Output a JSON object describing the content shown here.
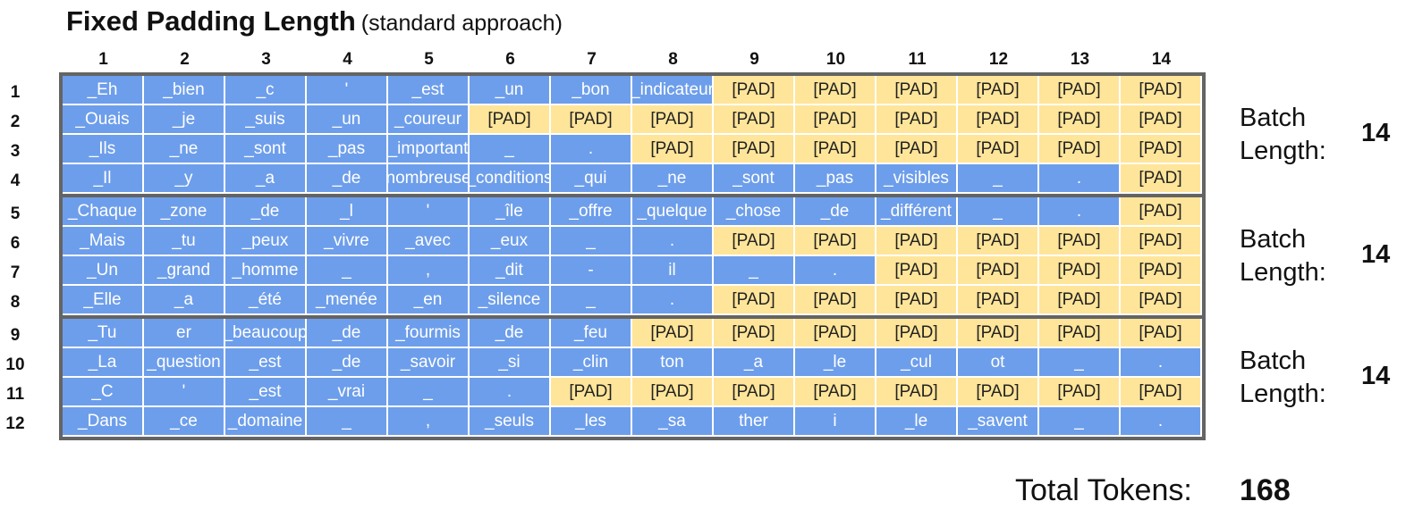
{
  "title": {
    "main": "Fixed Padding Length",
    "sub": "(standard approach)"
  },
  "columns": [
    "1",
    "2",
    "3",
    "4",
    "5",
    "6",
    "7",
    "8",
    "9",
    "10",
    "11",
    "12",
    "13",
    "14"
  ],
  "pad_token": "[PAD]",
  "rows": [
    {
      "label": "1",
      "tokens": [
        "_Eh",
        "_bien",
        "_c",
        "'",
        "_est",
        "_un",
        "_bon",
        "_indicateur"
      ]
    },
    {
      "label": "2",
      "tokens": [
        "_Ouais",
        "_je",
        "_suis",
        "_un",
        "_coureur"
      ]
    },
    {
      "label": "3",
      "tokens": [
        "_Ils",
        "_ne",
        "_sont",
        "_pas",
        "_important",
        "_",
        "."
      ]
    },
    {
      "label": "4",
      "tokens": [
        "_Il",
        "_y",
        "_a",
        "_de",
        "_nombreuses",
        "_conditions",
        "_qui",
        "_ne",
        "_sont",
        "_pas",
        "_visibles",
        "_",
        "."
      ]
    },
    {
      "label": "5",
      "tokens": [
        "_Chaque",
        "_zone",
        "_de",
        "_l",
        "'",
        "_île",
        "_offre",
        "_quelque",
        "_chose",
        "_de",
        "_différent",
        "_",
        "."
      ]
    },
    {
      "label": "6",
      "tokens": [
        "_Mais",
        "_tu",
        "_peux",
        "_vivre",
        "_avec",
        "_eux",
        "_",
        "."
      ]
    },
    {
      "label": "7",
      "tokens": [
        "_Un",
        "_grand",
        "_homme",
        "_",
        ",",
        "_dit",
        "-",
        "il",
        "_",
        "."
      ]
    },
    {
      "label": "8",
      "tokens": [
        "_Elle",
        "_a",
        "_été",
        "_menée",
        "_en",
        "_silence",
        "_",
        "."
      ]
    },
    {
      "label": "9",
      "tokens": [
        "_Tu",
        "er",
        "_beaucoup",
        "_de",
        "_fourmis",
        "_de",
        "_feu"
      ]
    },
    {
      "label": "10",
      "tokens": [
        "_La",
        "_question",
        "_est",
        "_de",
        "_savoir",
        "_si",
        "_clin",
        "ton",
        "_a",
        "_le",
        "_cul",
        "ot",
        "_",
        "."
      ]
    },
    {
      "label": "11",
      "tokens": [
        "_C",
        "'",
        "_est",
        "_vrai",
        "_",
        "."
      ]
    },
    {
      "label": "12",
      "tokens": [
        "_Dans",
        "_ce",
        "_domaine",
        "_",
        ",",
        "_seuls",
        "_les",
        "_sa",
        "ther",
        "i",
        "_le",
        "_savent",
        "_",
        "."
      ]
    }
  ],
  "batches": [
    {
      "label": "Batch Length:",
      "value": "14"
    },
    {
      "label": "Batch Length:",
      "value": "14"
    },
    {
      "label": "Batch Length:",
      "value": "14"
    }
  ],
  "total": {
    "label": "Total Tokens:",
    "value": "168"
  },
  "colors": {
    "token": "#6d9eeb",
    "pad": "#ffe599",
    "border": "#646464"
  }
}
